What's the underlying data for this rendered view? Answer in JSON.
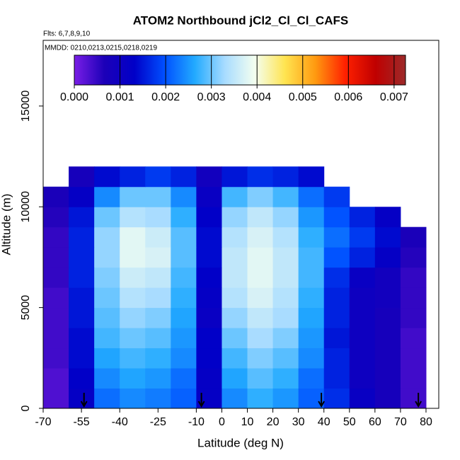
{
  "chart_data": {
    "type": "heatmap",
    "title": "ATOM2 Northbound jCl2_Cl_Cl_CAFS",
    "subtitle": "Flts: 6,7,8,9,10",
    "annotation": "MMDD: 0210,0213,0215,0218,0219",
    "x_label": "Latitude (deg N)",
    "y_label": "Altitude (m)",
    "xlim": [
      -70,
      85
    ],
    "xticks": [
      -70,
      -55,
      -40,
      -25,
      -10,
      0,
      10,
      20,
      30,
      40,
      50,
      60,
      70,
      80
    ],
    "ylim": [
      0,
      18260
    ],
    "yticks": [
      0,
      5000,
      10000,
      15000
    ],
    "x_bins": [
      -70,
      -60,
      -50,
      -40,
      -30,
      -20,
      -10,
      0,
      10,
      20,
      30,
      40,
      50,
      60,
      70,
      80
    ],
    "y_bins": [
      0,
      1000,
      2000,
      3000,
      4000,
      5000,
      6000,
      7000,
      8000,
      9000,
      10000,
      11000,
      12000
    ],
    "z": [
      [
        0.0003,
        0.0012,
        0.0022,
        0.0024,
        0.0023,
        0.0021,
        0.0012,
        0.0024,
        0.0027,
        0.0025,
        0.0021,
        0.0017,
        0.0011,
        0.0008,
        0.0004
      ],
      [
        0.0003,
        0.0013,
        0.0024,
        0.0026,
        0.0025,
        0.0022,
        0.0012,
        0.0026,
        0.0029,
        0.0027,
        0.0022,
        0.0016,
        0.001,
        0.0008,
        0.0004
      ],
      [
        0.0004,
        0.0014,
        0.0026,
        0.0028,
        0.0027,
        0.0024,
        0.0013,
        0.0028,
        0.0031,
        0.0029,
        0.0024,
        0.0016,
        0.001,
        0.0008,
        0.0004
      ],
      [
        0.0004,
        0.0014,
        0.0028,
        0.003,
        0.0029,
        0.0025,
        0.0013,
        0.003,
        0.0033,
        0.0031,
        0.0025,
        0.0015,
        0.001,
        0.0008,
        0.0004
      ],
      [
        0.0004,
        0.0015,
        0.0029,
        0.0032,
        0.0031,
        0.0026,
        0.0011,
        0.0032,
        0.0035,
        0.0033,
        0.0026,
        0.0016,
        0.001,
        0.0008,
        0.0005
      ],
      [
        0.0004,
        0.0015,
        0.003,
        0.0034,
        0.0033,
        0.0027,
        0.0012,
        0.0034,
        0.0037,
        0.0034,
        0.0027,
        0.0016,
        0.001,
        0.0009,
        0.0005
      ],
      [
        0.0005,
        0.0016,
        0.0031,
        0.0036,
        0.0035,
        0.0028,
        0.0013,
        0.0035,
        0.0038,
        0.0035,
        0.0028,
        0.0017,
        0.0011,
        0.0009,
        0.0005
      ],
      [
        0.0005,
        0.0016,
        0.0032,
        0.0038,
        0.0037,
        0.0029,
        0.0014,
        0.0035,
        0.0038,
        0.0035,
        0.0028,
        0.002,
        0.0016,
        0.0012,
        0.0006
      ],
      [
        0.0005,
        0.0016,
        0.0032,
        0.0038,
        0.0036,
        0.0029,
        0.0014,
        0.0034,
        0.0037,
        0.0034,
        0.0027,
        0.0022,
        0.0018,
        0.0014,
        0.0007
      ],
      [
        0.0006,
        0.0015,
        0.003,
        0.0034,
        0.0033,
        0.0027,
        0.0013,
        0.0032,
        0.0035,
        0.0032,
        0.0025,
        0.002,
        0.0016,
        0.0012,
        null
      ],
      [
        0.0007,
        0.0012,
        0.0024,
        0.003,
        0.003,
        0.0024,
        0.0011,
        0.0028,
        0.0031,
        0.0028,
        0.0022,
        0.0018,
        null,
        null,
        null
      ],
      [
        null,
        0.0008,
        0.0014,
        0.0016,
        0.0018,
        0.0016,
        0.0009,
        0.0015,
        0.0017,
        0.0016,
        0.0014,
        null,
        null,
        null,
        null
      ]
    ],
    "zlim": [
      0,
      0.00725
    ],
    "zticks": [
      {
        "value": 0,
        "label": "0.000"
      },
      {
        "value": 0.001,
        "label": "0.001"
      },
      {
        "value": 0.002,
        "label": "0.002"
      },
      {
        "value": 0.003,
        "label": "0.003"
      },
      {
        "value": 0.004,
        "label": "0.004"
      },
      {
        "value": 0.005,
        "label": "0.005"
      },
      {
        "value": 0.006,
        "label": "0.006"
      },
      {
        "value": 0.007,
        "label": "0.007"
      }
    ],
    "colorscale": [
      "#7a1ee6",
      "#1c00b8",
      "#0000c8",
      "#0050ff",
      "#22aaff",
      "#a8dcff",
      "#f4fff0",
      "#ffe450",
      "#ff9a10",
      "#ff2000",
      "#c00000",
      "#9c2a2a"
    ],
    "arrows_x": [
      -54,
      -8,
      39,
      77
    ]
  }
}
